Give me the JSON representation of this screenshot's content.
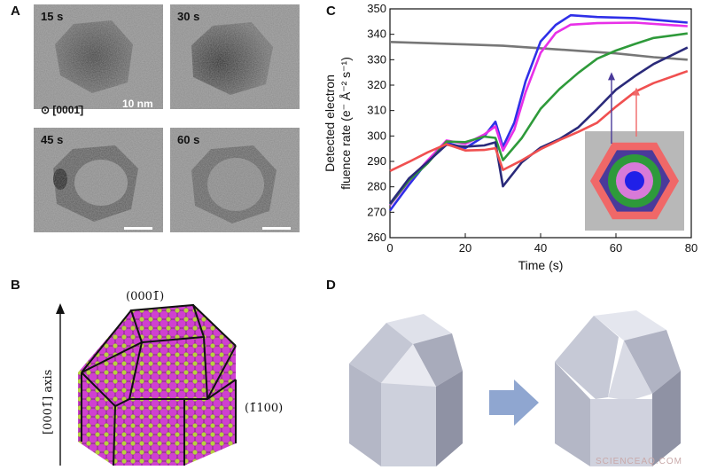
{
  "panel_letters": {
    "a": "A",
    "b": "B",
    "c": "C",
    "d": "D"
  },
  "tem": {
    "frames": [
      {
        "time": "15 s"
      },
      {
        "time": "30 s"
      },
      {
        "time": "45 s"
      },
      {
        "time": "60 s"
      }
    ],
    "scale_label": "10 nm",
    "zone_axis": "⊙ [0001̄]"
  },
  "model": {
    "top_label": "(0001̄)",
    "axis_label": "[0001̄] axis",
    "side_label": "(1̄100)"
  },
  "chart_data": {
    "type": "line",
    "title": "",
    "xlabel": "Time (s)",
    "ylabel_line1": "Detected electron",
    "ylabel_line2": "fluence rate (e⁻ Å⁻² s⁻¹)",
    "xlim": [
      0,
      80
    ],
    "ylim": [
      260,
      350
    ],
    "xticks": [
      0,
      20,
      40,
      60,
      80
    ],
    "yticks": [
      260,
      270,
      280,
      290,
      300,
      310,
      320,
      330,
      340,
      350
    ],
    "series": [
      {
        "color": "#777777",
        "x": [
          0,
          10,
          20,
          30,
          40,
          50,
          60,
          70,
          79
        ],
        "y": [
          337,
          336.5,
          336,
          335.5,
          334.5,
          333.5,
          332.5,
          331,
          330
        ]
      },
      {
        "color": "#2f2fe8",
        "x": [
          0,
          5,
          10,
          15,
          20,
          25,
          28,
          30,
          33,
          36,
          40,
          44,
          48,
          55,
          65,
          79
        ],
        "y": [
          270,
          280,
          290,
          298,
          296,
          300,
          305,
          295,
          305,
          322,
          338,
          344,
          347,
          346,
          346,
          345
        ]
      },
      {
        "color": "#e830e8",
        "x": [
          0,
          5,
          10,
          15,
          20,
          25,
          28,
          30,
          33,
          36,
          40,
          44,
          48,
          55,
          65,
          79
        ],
        "y": [
          272,
          282,
          291,
          299,
          297,
          300,
          303,
          294,
          303,
          318,
          333,
          340,
          343,
          344,
          345,
          344
        ]
      },
      {
        "color": "#2e9a3a",
        "x": [
          0,
          5,
          10,
          15,
          20,
          25,
          28,
          30,
          35,
          40,
          45,
          50,
          55,
          60,
          65,
          70,
          79
        ],
        "y": [
          273,
          283,
          290,
          298,
          297,
          299,
          299,
          291,
          300,
          311,
          318,
          324,
          330,
          334,
          337,
          339,
          340
        ]
      },
      {
        "color": "#2a2a7a",
        "x": [
          0,
          5,
          10,
          15,
          20,
          25,
          28,
          30,
          35,
          40,
          45,
          50,
          55,
          60,
          65,
          70,
          79
        ],
        "y": [
          274,
          284,
          290,
          296,
          295,
          296,
          298,
          281,
          290,
          295,
          298,
          303,
          311,
          319,
          324,
          328,
          334
        ]
      },
      {
        "color": "#f05050",
        "x": [
          0,
          5,
          10,
          15,
          20,
          25,
          28,
          30,
          35,
          40,
          45,
          50,
          55,
          60,
          65,
          70,
          79
        ],
        "y": [
          287,
          290,
          293,
          296,
          294,
          295,
          296,
          287,
          290,
          294,
          298,
          302,
          306,
          312,
          317,
          320,
          325
        ]
      }
    ],
    "inset": {
      "rings": [
        "#f06868",
        "#4a3a9a",
        "#2e9a3a",
        "#d87ad8",
        "#2020e8"
      ],
      "background": "#b8b8b8"
    }
  },
  "watermark": "SCIENCEAQ.COM"
}
